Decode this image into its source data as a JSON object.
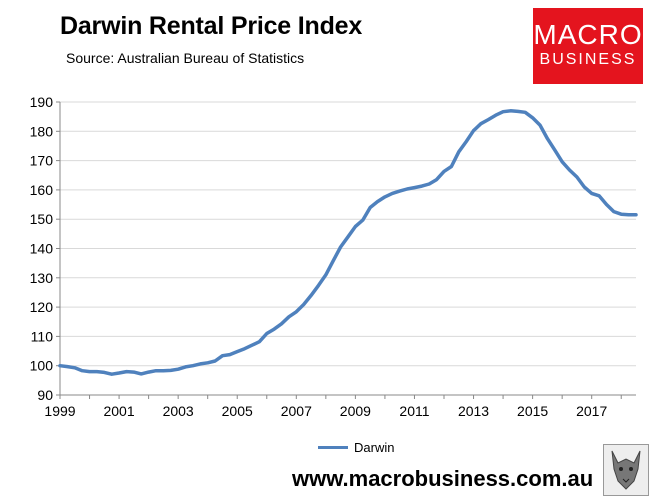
{
  "header": {
    "title": "Darwin Rental Price Index",
    "subtitle": "Source: Australian Bureau of Statistics"
  },
  "logo": {
    "line1": "MACRO",
    "line2": "BUSINESS"
  },
  "footer": {
    "url": "www.macrobusiness.com.au"
  },
  "colors": {
    "series": "#4f81bd",
    "logo_bg": "#e4141e",
    "grid": "#d9d9d9"
  },
  "chart_data": {
    "type": "line",
    "title": "Darwin Rental Price Index",
    "subtitle": "Source: Australian Bureau of Statistics",
    "xlabel": "",
    "ylabel": "",
    "xlim": [
      1999,
      2018.5
    ],
    "ylim": [
      90,
      190
    ],
    "y_ticks": [
      90,
      100,
      110,
      120,
      130,
      140,
      150,
      160,
      170,
      180,
      190
    ],
    "x_ticks": [
      "1999",
      "2001",
      "2003",
      "2005",
      "2007",
      "2009",
      "2011",
      "2013",
      "2015",
      "2017"
    ],
    "grid": "horizontal",
    "legend_position": "bottom",
    "series": [
      {
        "name": "Darwin",
        "x": [
          1999.0,
          1999.25,
          1999.5,
          1999.75,
          2000.0,
          2000.25,
          2000.5,
          2000.75,
          2001.0,
          2001.25,
          2001.5,
          2001.75,
          2002.0,
          2002.25,
          2002.5,
          2002.75,
          2003.0,
          2003.25,
          2003.5,
          2003.75,
          2004.0,
          2004.25,
          2004.5,
          2004.75,
          2005.0,
          2005.25,
          2005.5,
          2005.75,
          2006.0,
          2006.25,
          2006.5,
          2006.75,
          2007.0,
          2007.25,
          2007.5,
          2007.75,
          2008.0,
          2008.25,
          2008.5,
          2008.75,
          2009.0,
          2009.25,
          2009.5,
          2009.75,
          2010.0,
          2010.25,
          2010.5,
          2010.75,
          2011.0,
          2011.25,
          2011.5,
          2011.75,
          2012.0,
          2012.25,
          2012.5,
          2012.75,
          2013.0,
          2013.25,
          2013.5,
          2013.75,
          2014.0,
          2014.25,
          2014.5,
          2014.75,
          2015.0,
          2015.25,
          2015.5,
          2015.75,
          2016.0,
          2016.25,
          2016.5,
          2016.75,
          2017.0,
          2017.25,
          2017.5,
          2017.75,
          2018.0,
          2018.25,
          2018.5
        ],
        "values": [
          100,
          99.7,
          99.3,
          98.3,
          98,
          98,
          97.7,
          97.1,
          97.5,
          98,
          97.8,
          97.2,
          97.8,
          98.3,
          98.3,
          98.4,
          98.8,
          99.6,
          100,
          100.6,
          101,
          101.6,
          103.4,
          103.8,
          104.8,
          105.8,
          107,
          108.2,
          111,
          112.5,
          114.3,
          116.7,
          118.4,
          120.9,
          124,
          127.4,
          131,
          135.8,
          140.5,
          144,
          147.5,
          149.7,
          154,
          156,
          157.6,
          158.8,
          159.6,
          160.3,
          160.8,
          161.3,
          162,
          163.5,
          166.3,
          168,
          173,
          176.5,
          180.2,
          182.6,
          184,
          185.5,
          186.7,
          187,
          186.8,
          186.5,
          184.6,
          182.1,
          177.5,
          173.6,
          169.6,
          166.8,
          164.4,
          161,
          158.8,
          158,
          155,
          152.6,
          151.7,
          151.5,
          151.5
        ]
      }
    ]
  }
}
